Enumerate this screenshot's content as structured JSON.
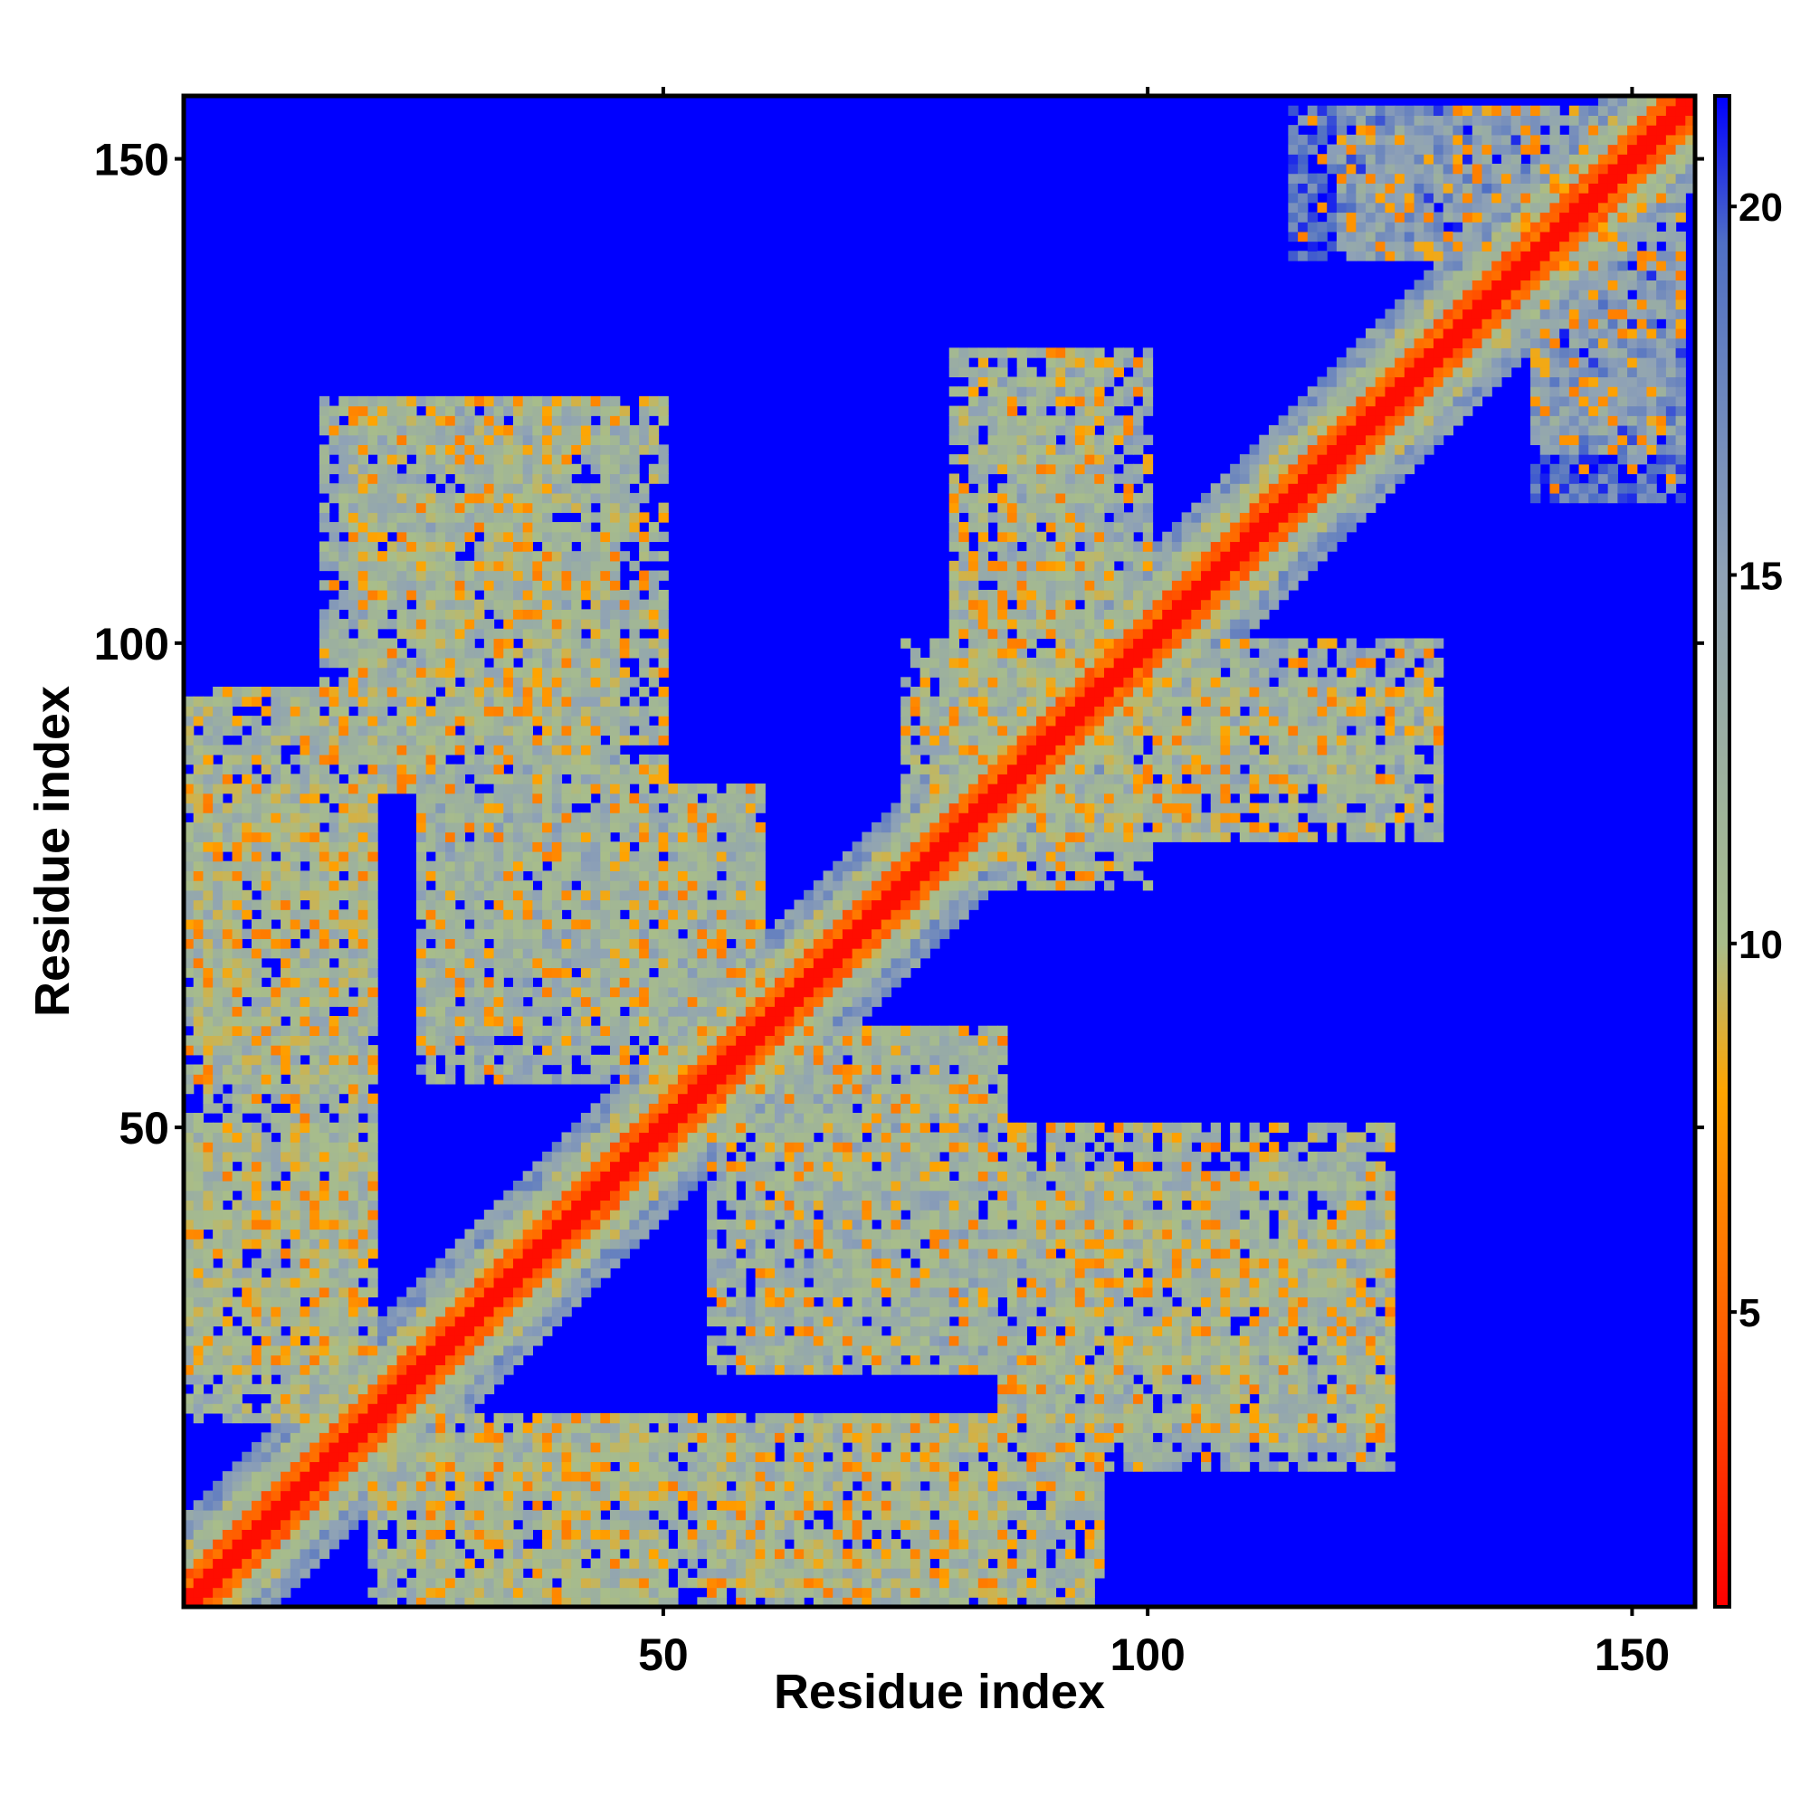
{
  "chart_data": {
    "type": "heatmap",
    "title": "",
    "xlabel": "Residue index",
    "ylabel": "Residue index",
    "x_range": [
      1,
      156
    ],
    "y_range": [
      1,
      156
    ],
    "xticks": [
      50,
      100,
      150
    ],
    "yticks": [
      50,
      100,
      150
    ],
    "colorbar": {
      "range": [
        1,
        21.5
      ],
      "ticks": [
        5,
        10,
        15,
        20
      ],
      "colors": [
        "#ff0000",
        "#ff5a00",
        "#ffa500",
        "#a8bd8a",
        "#8fa2b6",
        "#4f6fc4",
        "#0000ff"
      ],
      "color_stops": [
        1,
        4.5,
        8.0,
        10,
        15,
        19.5,
        21.5
      ]
    },
    "background_value": 21.5,
    "grid": false,
    "description_of_values": "Pairwise residue distance map, symmetric, low values along diagonal",
    "contact_blocks": [
      {
        "x_range": [
          1,
          20
        ],
        "y_range": [
          25,
          95
        ],
        "value": 11
      },
      {
        "x_range": [
          18,
          50
        ],
        "y_range": [
          85,
          125
        ],
        "value": 11
      },
      {
        "x_range": [
          25,
          60
        ],
        "y_range": [
          55,
          85
        ],
        "value": 12
      },
      {
        "x_range": [
          20,
          50
        ],
        "y_range": [
          1,
          20
        ],
        "value": 11
      },
      {
        "x_range": [
          55,
          85
        ],
        "y_range": [
          1,
          20
        ],
        "value": 11
      },
      {
        "x_range": [
          60,
          85
        ],
        "y_range": [
          25,
          60
        ],
        "value": 12
      },
      {
        "x_range": [
          75,
          105
        ],
        "y_range": [
          80,
          100
        ],
        "value": 11
      },
      {
        "x_range": [
          80,
          95
        ],
        "y_range": [
          95,
          130
        ],
        "value": 11
      },
      {
        "x_range": [
          85,
          125
        ],
        "y_range": [
          15,
          45
        ],
        "value": 12
      },
      {
        "x_range": [
          100,
          130
        ],
        "y_range": [
          85,
          100
        ],
        "value": 12
      },
      {
        "x_range": [
          140,
          155
        ],
        "y_range": [
          120,
          150
        ],
        "value": 14
      },
      {
        "x_range": [
          115,
          140
        ],
        "y_range": [
          140,
          155
        ],
        "value": 17
      }
    ]
  }
}
